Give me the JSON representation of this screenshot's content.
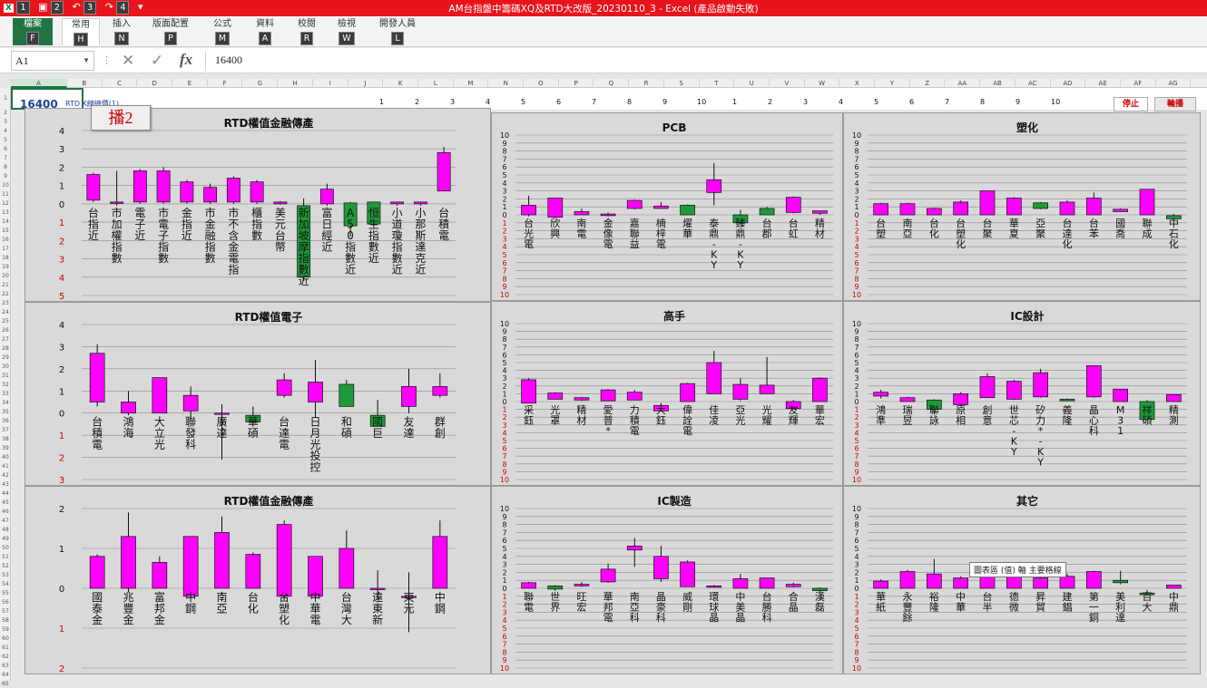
{
  "window": {
    "title": "AM台指盤中籌碼XQ及RTD大改版_20230110_3 - Excel (產品啟動失敗)",
    "qat_keytips": [
      "1",
      "2",
      "3",
      "4"
    ]
  },
  "ribbon": {
    "tabs": [
      {
        "label": "檔案",
        "key": "F"
      },
      {
        "label": "常用",
        "key": "H"
      },
      {
        "label": "插入",
        "key": "N"
      },
      {
        "label": "版面配置",
        "key": "P"
      },
      {
        "label": "公式",
        "key": "M"
      },
      {
        "label": "資料",
        "key": "A"
      },
      {
        "label": "校閱",
        "key": "R"
      },
      {
        "label": "檢視",
        "key": "W"
      },
      {
        "label": "開發人員",
        "key": "L"
      }
    ]
  },
  "formula_bar": {
    "name_box": "A1",
    "formula": "16400",
    "fx_label": "fx"
  },
  "sheet": {
    "columns": [
      "A",
      "B",
      "C",
      "D",
      "E",
      "F",
      "G",
      "H",
      "I",
      "J",
      "K",
      "L",
      "M",
      "N",
      "O",
      "P",
      "Q",
      "R",
      "S",
      "T",
      "U",
      "V",
      "W",
      "X",
      "Y",
      "Z",
      "AA",
      "AB",
      "AC",
      "AD",
      "AE",
      "AF",
      "AG"
    ],
    "selected_column": "A",
    "a1_value": "16400",
    "a1_side_text": "RTD K線總價(1)",
    "header_numbers": [
      "1",
      "2",
      "3",
      "4",
      "5",
      "6",
      "7",
      "8",
      "9",
      "10",
      "1",
      "2",
      "3",
      "4",
      "5",
      "6",
      "7",
      "8",
      "9",
      "10"
    ],
    "stop_button": "停止",
    "run_button": "輪播",
    "broadcast_label": "播2",
    "tooltip": "圖表區 (值) 軸 主要格線"
  },
  "chart_data": [
    {
      "type": "candlestick",
      "title": "RTD權值金融傳產",
      "ylim": [
        -5,
        4
      ],
      "categories": [
        "台指近",
        "市加權指數",
        "電子近",
        "市電子指數",
        "金指近",
        "市金融指數",
        "市不含金電指",
        "櫃指數",
        "美元台幣",
        "新加坡摩指數近",
        "富日經近",
        "A50指數近",
        "恒生指數近",
        "小道瓊指數近",
        "小那斯達克近",
        "台積電"
      ],
      "ohlc": [
        [
          0.2,
          1.7,
          0.1,
          1.6
        ],
        [
          0.1,
          1.8,
          -0.1,
          0.1
        ],
        [
          0.1,
          1.9,
          0.0,
          1.8
        ],
        [
          0.1,
          2.0,
          0.0,
          1.8
        ],
        [
          0.1,
          1.3,
          0.0,
          1.2
        ],
        [
          0.1,
          1.1,
          0.0,
          0.9
        ],
        [
          0.1,
          1.5,
          0.0,
          1.4
        ],
        [
          0.1,
          1.3,
          0.0,
          1.2
        ],
        [
          0.0,
          0.15,
          -0.05,
          0.1
        ],
        [
          -0.1,
          0.3,
          -4.2,
          -4.0
        ],
        [
          0.0,
          1.1,
          -0.1,
          0.8
        ],
        [
          0.05,
          0.1,
          -1.8,
          -1.2
        ],
        [
          0.1,
          0.1,
          -1.2,
          -1.1
        ],
        [
          0.0,
          0.1,
          -0.1,
          0.1
        ],
        [
          0.0,
          0.1,
          -0.1,
          0.1
        ],
        [
          0.7,
          3.1,
          0.7,
          2.8
        ]
      ]
    },
    {
      "type": "candlestick",
      "title": "RTD權值電子",
      "ylim": [
        -3,
        4
      ],
      "categories": [
        "台積電",
        "鴻海",
        "大立光",
        "聯發科",
        "廣達",
        "華碩",
        "台達電",
        "日月光投控",
        "和碩",
        "國巨",
        "友達",
        "群創"
      ],
      "ohlc": [
        [
          0.5,
          3.1,
          0.3,
          2.7
        ],
        [
          0.0,
          1.0,
          -0.1,
          0.5
        ],
        [
          0.0,
          1.6,
          0.0,
          1.6
        ],
        [
          0.1,
          1.2,
          -0.3,
          0.8
        ],
        [
          0.0,
          0.4,
          -2.1,
          0.0
        ],
        [
          -0.1,
          0.3,
          -0.5,
          -0.4
        ],
        [
          0.8,
          1.8,
          0.7,
          1.5
        ],
        [
          0.5,
          2.4,
          -0.2,
          1.4
        ],
        [
          1.3,
          1.5,
          0.3,
          0.3
        ],
        [
          -0.1,
          0.6,
          -0.6,
          -0.6
        ],
        [
          0.3,
          2.0,
          0.0,
          1.2
        ],
        [
          0.8,
          1.8,
          0.7,
          1.2
        ]
      ]
    },
    {
      "type": "candlestick",
      "title": "RTD權值金融傳產",
      "ylim": [
        -2,
        2
      ],
      "categories": [
        "國泰金",
        "兆豐金",
        "富邦金",
        "中鋼",
        "南亞",
        "台化",
        "台塑化",
        "中華電",
        "台灣大",
        "遠東新",
        "東元",
        "中鋼"
      ],
      "ohlc": [
        [
          0.0,
          0.85,
          0.0,
          0.8
        ],
        [
          0.0,
          1.9,
          -0.1,
          1.3
        ],
        [
          0.0,
          0.8,
          0.0,
          0.65
        ],
        [
          -0.2,
          1.3,
          -0.2,
          1.3
        ],
        [
          0.0,
          1.8,
          0.0,
          1.4
        ],
        [
          0.0,
          0.9,
          0.0,
          0.85
        ],
        [
          -0.2,
          1.7,
          -0.3,
          1.6
        ],
        [
          -0.2,
          0.8,
          -0.2,
          0.8
        ],
        [
          0.0,
          1.45,
          0.0,
          1.0
        ],
        [
          0.0,
          0.45,
          -0.3,
          0.0
        ],
        [
          -0.2,
          0.4,
          -1.1,
          -0.2
        ],
        [
          0.0,
          1.7,
          0.0,
          1.3
        ]
      ]
    },
    {
      "type": "candlestick",
      "title": "PCB",
      "ylim": [
        -10,
        10
      ],
      "categories": [
        "台光電",
        "欣興",
        "南電",
        "金像電",
        "嘉聯益",
        "楠梓電",
        "燿華",
        "泰鼎-KY",
        "臻鼎-KY",
        "台郡",
        "台虹",
        "精材"
      ],
      "ohlc": [
        [
          0,
          2.4,
          -0.2,
          1.2
        ],
        [
          -0.3,
          2.1,
          -0.4,
          2.1
        ],
        [
          0,
          0.8,
          0,
          0.4
        ],
        [
          -0.1,
          0.3,
          -0.2,
          0.1
        ],
        [
          0.8,
          1.9,
          0.7,
          1.8
        ],
        [
          0.8,
          1.6,
          0.8,
          1.1
        ],
        [
          1.2,
          1.3,
          0,
          0
        ],
        [
          2.8,
          6.5,
          1.2,
          4.4
        ],
        [
          0,
          0.6,
          -1.2,
          -1.0
        ],
        [
          0.8,
          1.0,
          0,
          0
        ],
        [
          0.3,
          2.3,
          0.2,
          2.2
        ],
        [
          0.2,
          0.5,
          0,
          0.5
        ]
      ]
    },
    {
      "type": "candlestick",
      "title": "塑化",
      "ylim": [
        -10,
        10
      ],
      "categories": [
        "台塑",
        "南亞",
        "台化",
        "台塑化",
        "台聚",
        "華夏",
        "亞聚",
        "台達化",
        "台苯",
        "國喬",
        "聯成",
        "中石化"
      ],
      "ohlc": [
        [
          0,
          1.5,
          0,
          1.4
        ],
        [
          0,
          1.5,
          0,
          1.4
        ],
        [
          0,
          0.9,
          0,
          0.8
        ],
        [
          0,
          1.8,
          0,
          1.6
        ],
        [
          0,
          3.0,
          0,
          3.0
        ],
        [
          0,
          2.2,
          0,
          2.1
        ],
        [
          1.5,
          1.6,
          0.7,
          0.8
        ],
        [
          0,
          1.8,
          0,
          1.6
        ],
        [
          0,
          2.8,
          0,
          2.1
        ],
        [
          0.4,
          0.8,
          0.4,
          0.7
        ],
        [
          0,
          3.2,
          0,
          3.2
        ],
        [
          -0.1,
          0.1,
          -0.6,
          -0.5
        ]
      ]
    },
    {
      "type": "candlestick",
      "title": "高手",
      "ylim": [
        -10,
        10
      ],
      "categories": [
        "采鈺",
        "光罩",
        "精材",
        "愛普*",
        "力積電",
        "大鈺",
        "偉詮電",
        "佳凌",
        "亞光",
        "光耀",
        "友輝",
        "華宏"
      ],
      "ohlc": [
        [
          -0.2,
          3.0,
          -0.2,
          2.8
        ],
        [
          0.3,
          1.2,
          0.3,
          1.1
        ],
        [
          0.2,
          0.6,
          0.1,
          0.5
        ],
        [
          0.1,
          1.6,
          0.1,
          1.5
        ],
        [
          0.2,
          1.5,
          0.2,
          1.2
        ],
        [
          -1.2,
          -0.2,
          -1.3,
          -0.5
        ],
        [
          0,
          2.4,
          0,
          2.3
        ],
        [
          1.0,
          6.5,
          1.0,
          5.0
        ],
        [
          0.3,
          3.0,
          0.1,
          2.2
        ],
        [
          1.0,
          5.7,
          1.0,
          2.1
        ],
        [
          -0.9,
          0.2,
          -1.0,
          0
        ],
        [
          0,
          3.1,
          0,
          3.0
        ]
      ]
    },
    {
      "type": "candlestick",
      "title": "IC設計",
      "ylim": [
        -10,
        10
      ],
      "categories": [
        "鴻準",
        "瑞昱",
        "聯詠",
        "原相",
        "創意",
        "世芯-KY",
        "矽力*-KY",
        "義隆",
        "晶心科",
        "M31",
        "祥碩",
        "精測"
      ],
      "ohlc": [
        [
          0.7,
          1.5,
          0.4,
          1.2
        ],
        [
          0.0,
          0.6,
          0.0,
          0.5
        ],
        [
          0.2,
          0.3,
          -1.5,
          -1.0
        ],
        [
          -0.4,
          1.2,
          -0.5,
          1.0
        ],
        [
          0.5,
          3.6,
          0.5,
          3.2
        ],
        [
          0.3,
          2.8,
          0.2,
          2.6
        ],
        [
          0.6,
          4.2,
          0.5,
          3.7
        ],
        [
          0.3,
          0.4,
          0.1,
          0.1
        ],
        [
          0.6,
          4.6,
          0.5,
          4.6
        ],
        [
          0.0,
          1.6,
          0.0,
          1.6
        ],
        [
          0.0,
          0.2,
          -2.4,
          -2.3
        ],
        [
          0,
          0.9,
          0,
          0.9
        ]
      ]
    },
    {
      "type": "candlestick",
      "title": "IC製造",
      "ylim": [
        -10,
        10
      ],
      "categories": [
        "聯電",
        "世界",
        "旺宏",
        "華邦電",
        "南亞科",
        "晶豪科",
        "威剛",
        "環球晶",
        "中美晶",
        "台勝科",
        "合晶",
        "漢磊"
      ],
      "ohlc": [
        [
          0,
          0.8,
          0,
          0.7
        ],
        [
          0.3,
          0.4,
          -0.3,
          -0.1
        ],
        [
          0.3,
          0.8,
          0.2,
          0.5
        ],
        [
          0.8,
          3.1,
          0.7,
          2.4
        ],
        [
          4.8,
          6.3,
          2.7,
          5.3
        ],
        [
          1.2,
          5.3,
          0.8,
          4.0
        ],
        [
          0.2,
          3.5,
          0.2,
          3.3
        ],
        [
          0.2,
          0.4,
          0.2,
          0.3
        ],
        [
          0,
          1.8,
          0,
          1.2
        ],
        [
          0,
          1.3,
          0,
          1.3
        ],
        [
          0.2,
          0.7,
          0.1,
          0.5
        ],
        [
          0,
          0.1,
          -0.6,
          -0.3
        ]
      ]
    },
    {
      "type": "candlestick",
      "title": "其它",
      "ylim": [
        -10,
        10
      ],
      "categories": [
        "華紙",
        "永豐餘",
        "裕隆",
        "中華",
        "台半",
        "德微",
        "昇貿",
        "建錩",
        "第一銅",
        "美利達",
        "百大",
        "中鼎"
      ],
      "ohlc": [
        [
          0,
          1.1,
          0,
          0.9
        ],
        [
          0,
          2.3,
          0,
          2.1
        ],
        [
          0,
          3.7,
          0,
          1.8
        ],
        [
          0,
          1.5,
          0,
          1.3
        ],
        [
          0,
          1.7,
          0,
          1.4
        ],
        [
          0,
          2.2,
          0,
          2.0
        ],
        [
          0,
          1.5,
          0,
          1.3
        ],
        [
          0,
          1.8,
          0,
          1.5
        ],
        [
          0,
          2.2,
          0,
          2.1
        ],
        [
          1.0,
          2.2,
          0.5,
          0.7
        ],
        [
          -0.6,
          -0.2,
          -0.8,
          -0.8
        ],
        [
          0,
          0.4,
          0,
          0.4
        ]
      ]
    }
  ]
}
